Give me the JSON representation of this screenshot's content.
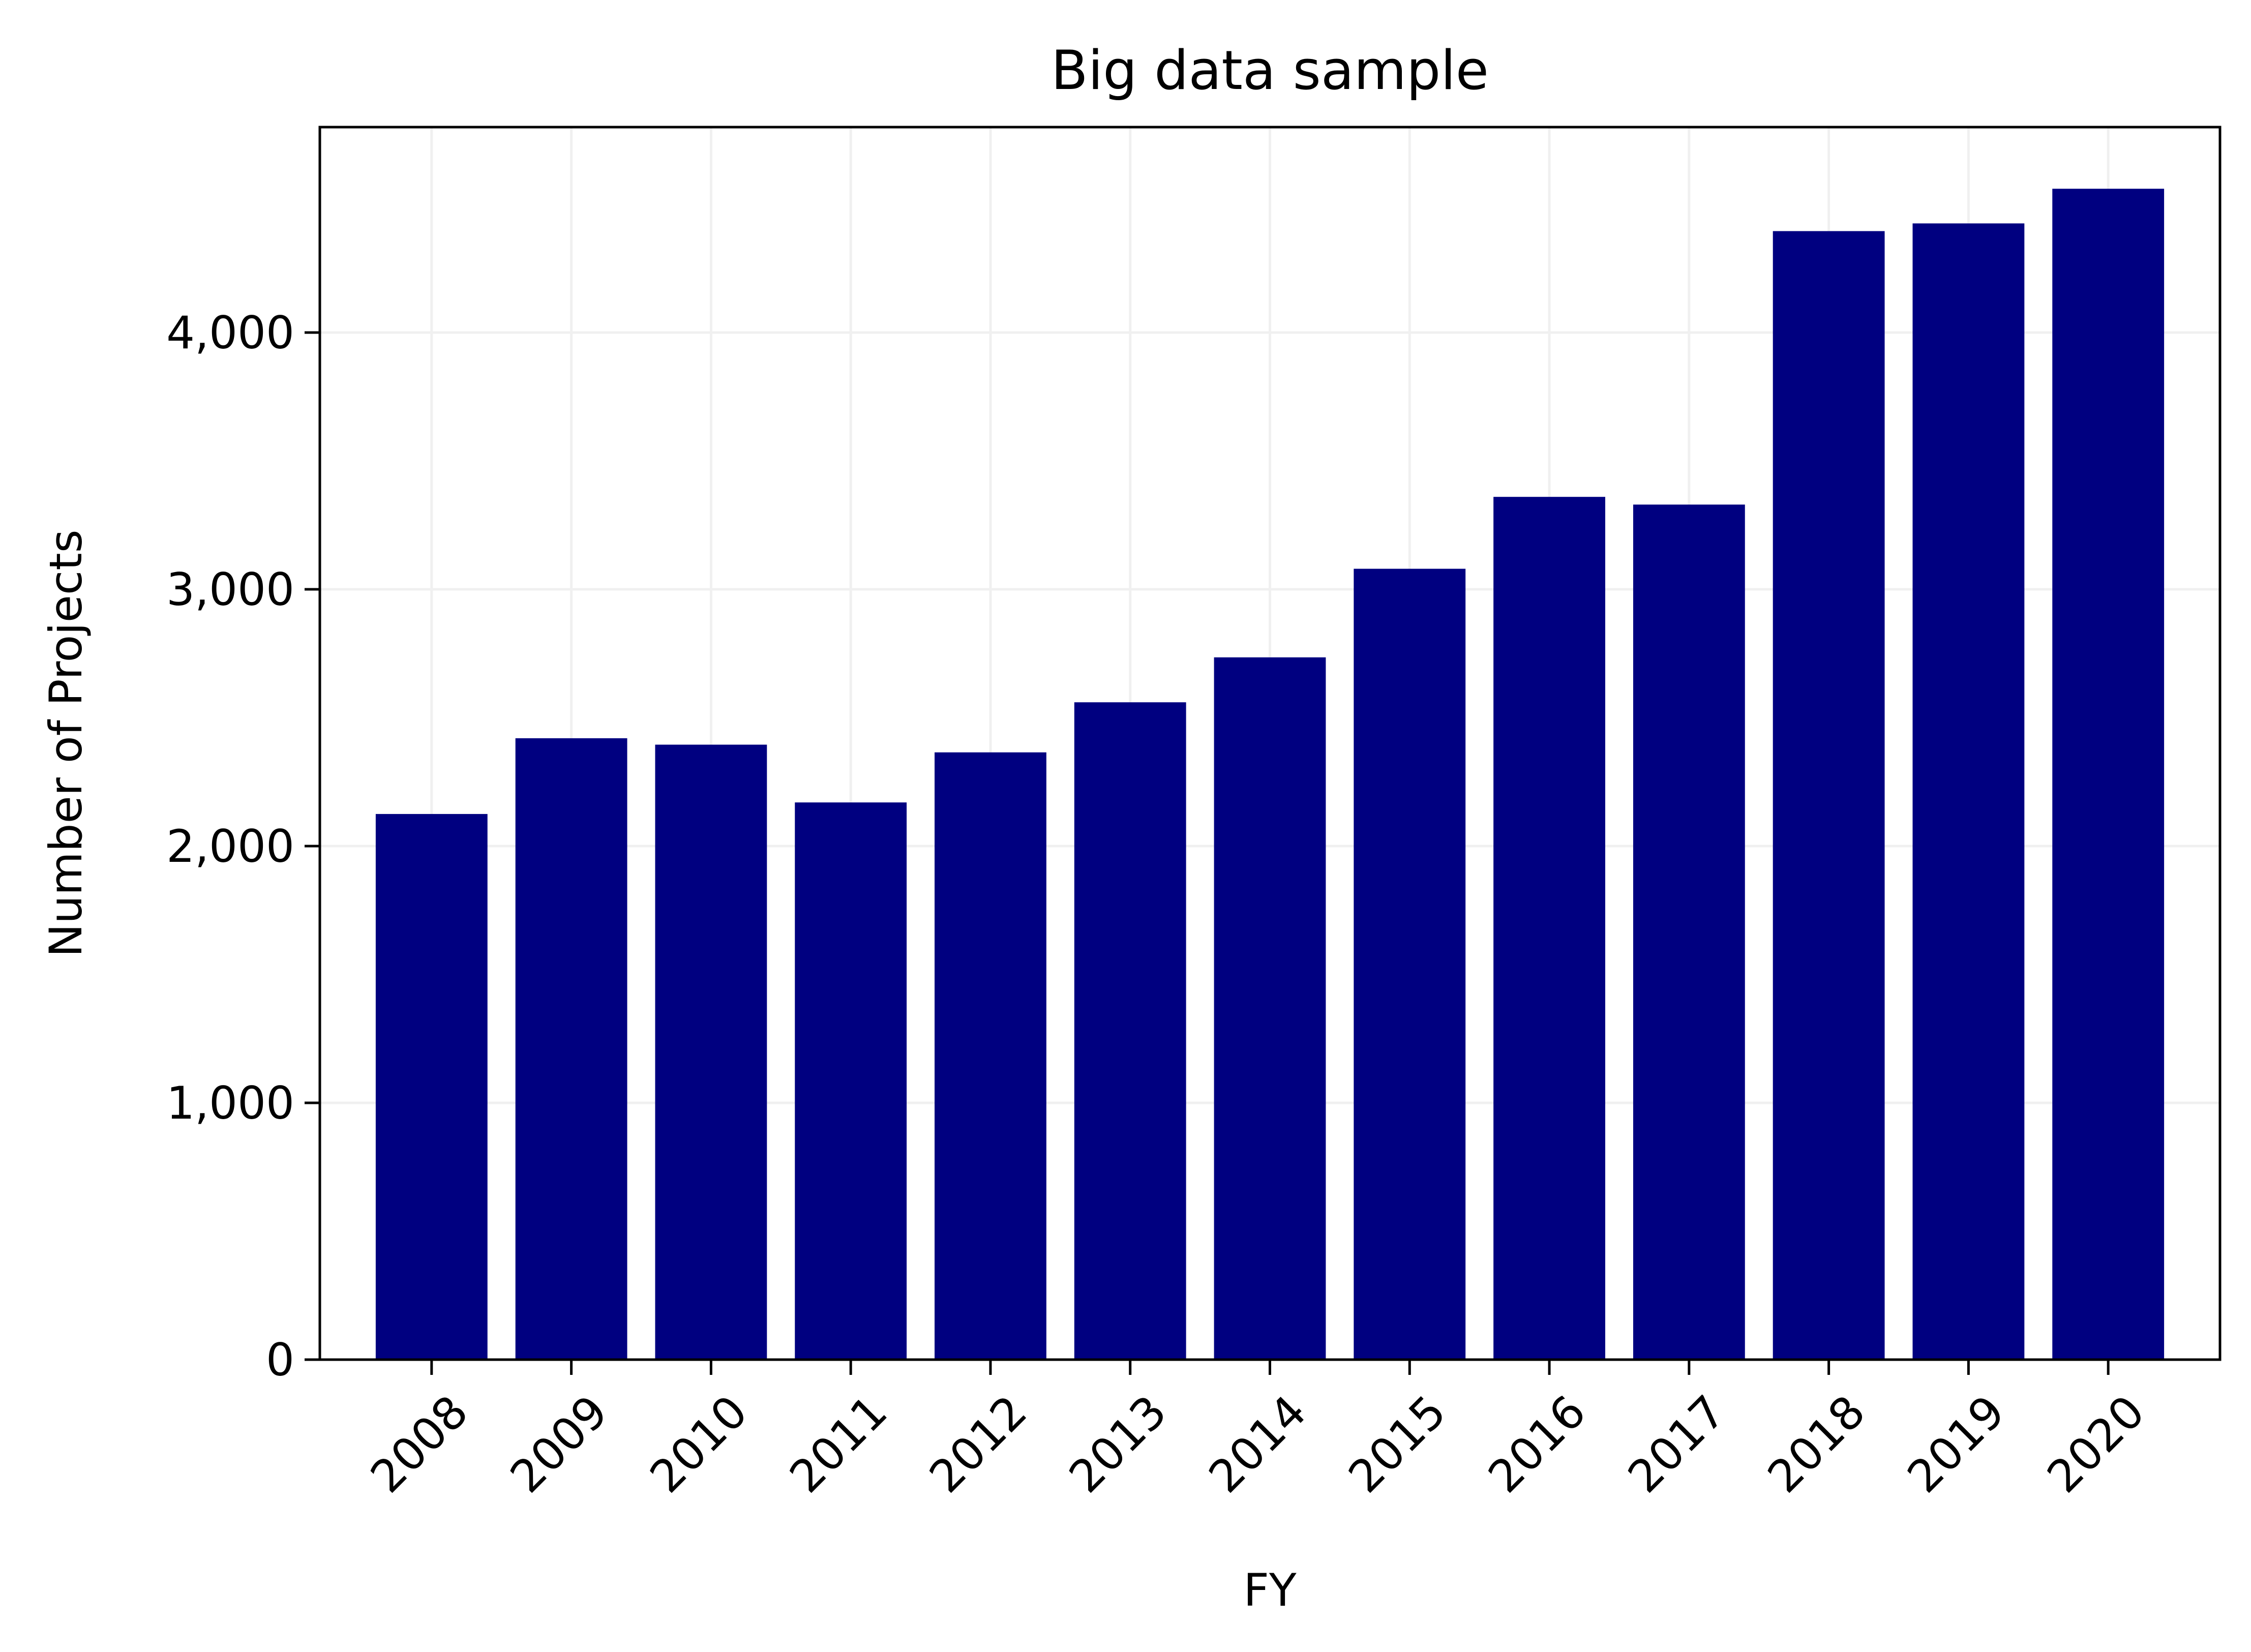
{
  "chart_data": {
    "type": "bar",
    "title": "Big data sample",
    "xlabel": "FY",
    "ylabel": "Number of Projects",
    "categories": [
      "2008",
      "2009",
      "2010",
      "2011",
      "2012",
      "2013",
      "2014",
      "2015",
      "2016",
      "2017",
      "2018",
      "2019",
      "2020"
    ],
    "values": [
      2125,
      2420,
      2395,
      2170,
      2365,
      2560,
      2735,
      3080,
      3360,
      3330,
      4395,
      4425,
      4560
    ],
    "ylim": [
      0,
      4800
    ],
    "yticks": [
      0,
      1000,
      2000,
      3000,
      4000
    ],
    "ytick_labels": [
      "0",
      "1,000",
      "2,000",
      "3,000",
      "4,000"
    ],
    "grid": true,
    "legend": "none",
    "bar_color": "#000080",
    "grid_color": "#f0f0f0"
  }
}
